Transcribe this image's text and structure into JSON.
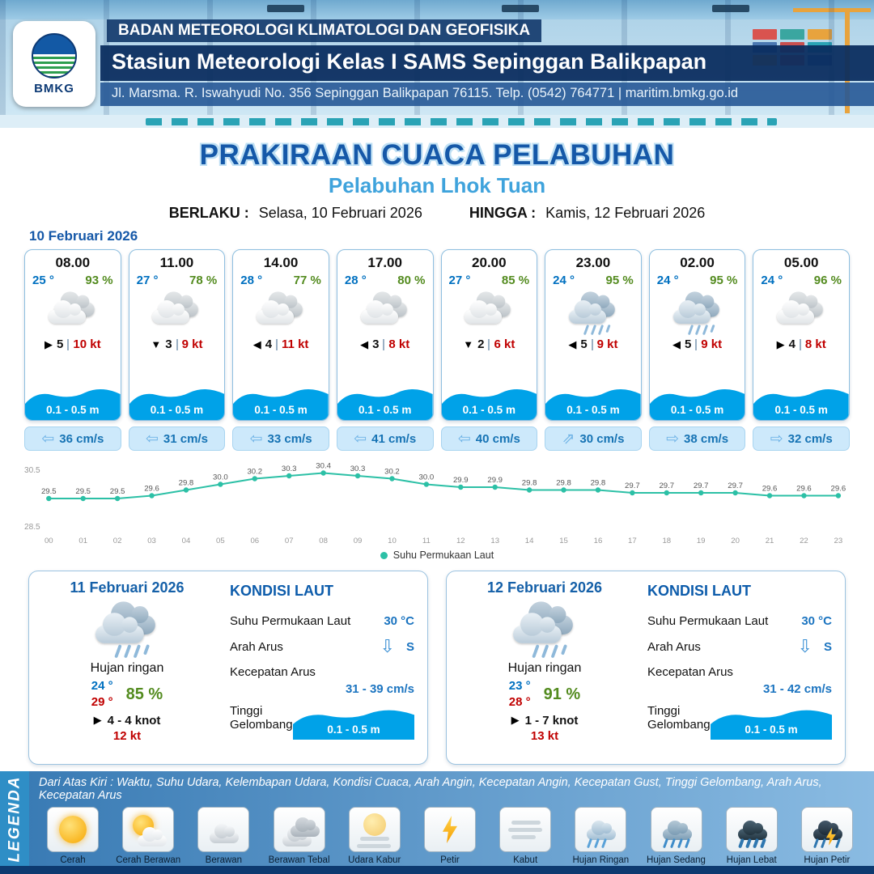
{
  "header": {
    "logo": "BMKG",
    "agency": "BADAN METEOROLOGI KLIMATOLOGI DAN GEOFISIKA",
    "station": "Stasiun Meteorologi Kelas I SAMS Sepinggan Balikpapan",
    "address": "Jl. Marsma. R. Iswahyudi No. 356 Sepinggan Balikpapan 76115. Telp. (0542) 764771 | maritim.bmkg.go.id"
  },
  "title": {
    "main": "PRAKIRAAN CUACA PELABUHAN",
    "port": "Pelabuhan Lhok Tuan",
    "berlaku_label": "BERLAKU :",
    "berlaku_value": "Selasa, 10 Februari 2026",
    "hingga_label": "HINGGA :",
    "hingga_value": "Kamis, 12 Februari 2026"
  },
  "forecast_date": "10 Februari 2026",
  "forecast_cards": [
    {
      "time": "08.00",
      "temp": "25 °",
      "humidity": "93 %",
      "icon": "berawan",
      "wind_arrow": "▶",
      "wind_speed": "5",
      "gust": "10 kt",
      "wave_height": "0.1 - 0.5 m",
      "current_arrow": "⇦",
      "current_speed": "36 cm/s"
    },
    {
      "time": "11.00",
      "temp": "27 °",
      "humidity": "78 %",
      "icon": "berawan",
      "wind_arrow": "▼",
      "wind_speed": "3",
      "gust": "9 kt",
      "wave_height": "0.1 - 0.5 m",
      "current_arrow": "⇦",
      "current_speed": "31 cm/s"
    },
    {
      "time": "14.00",
      "temp": "28 °",
      "humidity": "77 %",
      "icon": "berawan",
      "wind_arrow": "◀",
      "wind_speed": "4",
      "gust": "11 kt",
      "wave_height": "0.1 - 0.5 m",
      "current_arrow": "⇦",
      "current_speed": "33 cm/s"
    },
    {
      "time": "17.00",
      "temp": "28 °",
      "humidity": "80 %",
      "icon": "berawan",
      "wind_arrow": "◀",
      "wind_speed": "3",
      "gust": "8 kt",
      "wave_height": "0.1 - 0.5 m",
      "current_arrow": "⇦",
      "current_speed": "41 cm/s"
    },
    {
      "time": "20.00",
      "temp": "27 °",
      "humidity": "85 %",
      "icon": "berawan",
      "wind_arrow": "▼",
      "wind_speed": "2",
      "gust": "6 kt",
      "wave_height": "0.1 - 0.5 m",
      "current_arrow": "⇦",
      "current_speed": "40 cm/s"
    },
    {
      "time": "23.00",
      "temp": "24 °",
      "humidity": "95 %",
      "icon": "hujan-ringan",
      "wind_arrow": "◀",
      "wind_speed": "5",
      "gust": "9 kt",
      "wave_height": "0.1 - 0.5 m",
      "current_arrow": "⇗",
      "current_speed": "30 cm/s"
    },
    {
      "time": "02.00",
      "temp": "24 °",
      "humidity": "95 %",
      "icon": "hujan-ringan",
      "wind_arrow": "◀",
      "wind_speed": "5",
      "gust": "9 kt",
      "wave_height": "0.1 - 0.5 m",
      "current_arrow": "⇨",
      "current_speed": "38 cm/s"
    },
    {
      "time": "05.00",
      "temp": "24 °",
      "humidity": "96 %",
      "icon": "berawan",
      "wind_arrow": "▶",
      "wind_speed": "4",
      "gust": "8 kt",
      "wave_height": "0.1 - 0.5 m",
      "current_arrow": "⇨",
      "current_speed": "32 cm/s"
    }
  ],
  "chart_data": {
    "type": "line",
    "x": [
      "00",
      "01",
      "02",
      "03",
      "04",
      "05",
      "06",
      "07",
      "08",
      "09",
      "10",
      "11",
      "12",
      "13",
      "14",
      "15",
      "16",
      "17",
      "18",
      "19",
      "20",
      "21",
      "22",
      "23"
    ],
    "values": [
      29.5,
      29.5,
      29.5,
      29.6,
      29.8,
      30.0,
      30.2,
      30.3,
      30.4,
      30.3,
      30.2,
      30.0,
      29.9,
      29.9,
      29.8,
      29.8,
      29.8,
      29.7,
      29.7,
      29.7,
      29.7,
      29.6,
      29.6,
      29.6
    ],
    "ylim": [
      28.5,
      30.5
    ],
    "legend": "Suhu Permukaan Laut",
    "line_color": "#2cc0a6",
    "xlabel": "",
    "ylabel": ""
  },
  "daily_cards": [
    {
      "date": "11 Februari 2026",
      "icon": "hujan-ringan",
      "condition": "Hujan ringan",
      "temp_min": "24 °",
      "temp_max": "29 °",
      "humidity": "85 %",
      "wind_arrow": "▶",
      "wind": "4 - 4 knot",
      "gust": "12 kt",
      "sea": {
        "title": "KONDISI LAUT",
        "sst_label": "Suhu Permukaan Laut",
        "sst": "30 °C",
        "dir_label": "Arah Arus",
        "dir_arrow": "⇩",
        "dir": "S",
        "speed_label": "Kecepatan Arus",
        "speed": "31 - 39 cm/s",
        "wave_label": "Tinggi Gelombang",
        "wave": "0.1 - 0.5 m"
      }
    },
    {
      "date": "12 Februari 2026",
      "icon": "hujan-ringan",
      "condition": "Hujan ringan",
      "temp_min": "23 °",
      "temp_max": "28 °",
      "humidity": "91 %",
      "wind_arrow": "▶",
      "wind": "1 - 7 knot",
      "gust": "13 kt",
      "sea": {
        "title": "KONDISI LAUT",
        "sst_label": "Suhu Permukaan Laut",
        "sst": "30 °C",
        "dir_label": "Arah Arus",
        "dir_arrow": "⇩",
        "dir": "S",
        "speed_label": "Kecepatan Arus",
        "speed": "31 - 42 cm/s",
        "wave_label": "Tinggi Gelombang",
        "wave": "0.1 - 0.5 m"
      }
    }
  ],
  "legend": {
    "title": "LEGENDA",
    "caption": "Dari Atas Kiri : Waktu, Suhu Udara, Kelembapan Udara, Kondisi Cuaca, Arah Angin, Kecepatan Angin, Kecepatan Gust, Tinggi Gelombang, Arah Arus, Kecepatan Arus",
    "items": [
      {
        "label": "Cerah",
        "icon": "cerah"
      },
      {
        "label": "Cerah Berawan",
        "icon": "cerah-berawan"
      },
      {
        "label": "Berawan",
        "icon": "berawan"
      },
      {
        "label": "Berawan Tebal",
        "icon": "berawan-tebal"
      },
      {
        "label": "Udara Kabur",
        "icon": "udara-kabur"
      },
      {
        "label": "Petir",
        "icon": "petir"
      },
      {
        "label": "Kabut",
        "icon": "kabut"
      },
      {
        "label": "Hujan Ringan",
        "icon": "hujan-ringan"
      },
      {
        "label": "Hujan Sedang",
        "icon": "hujan-sedang"
      },
      {
        "label": "Hujan Lebat",
        "icon": "hujan-lebat"
      },
      {
        "label": "Hujan Petir",
        "icon": "hujan-petir"
      }
    ]
  },
  "colors": {
    "accent_blue": "#1558a8",
    "light_blue": "#3fa3dc",
    "temp_blue": "#0070c0",
    "humidity_green": "#538b1f",
    "gust_red": "#c00000",
    "wave_blue": "#00a2e8",
    "chart_line": "#2cc0a6"
  }
}
